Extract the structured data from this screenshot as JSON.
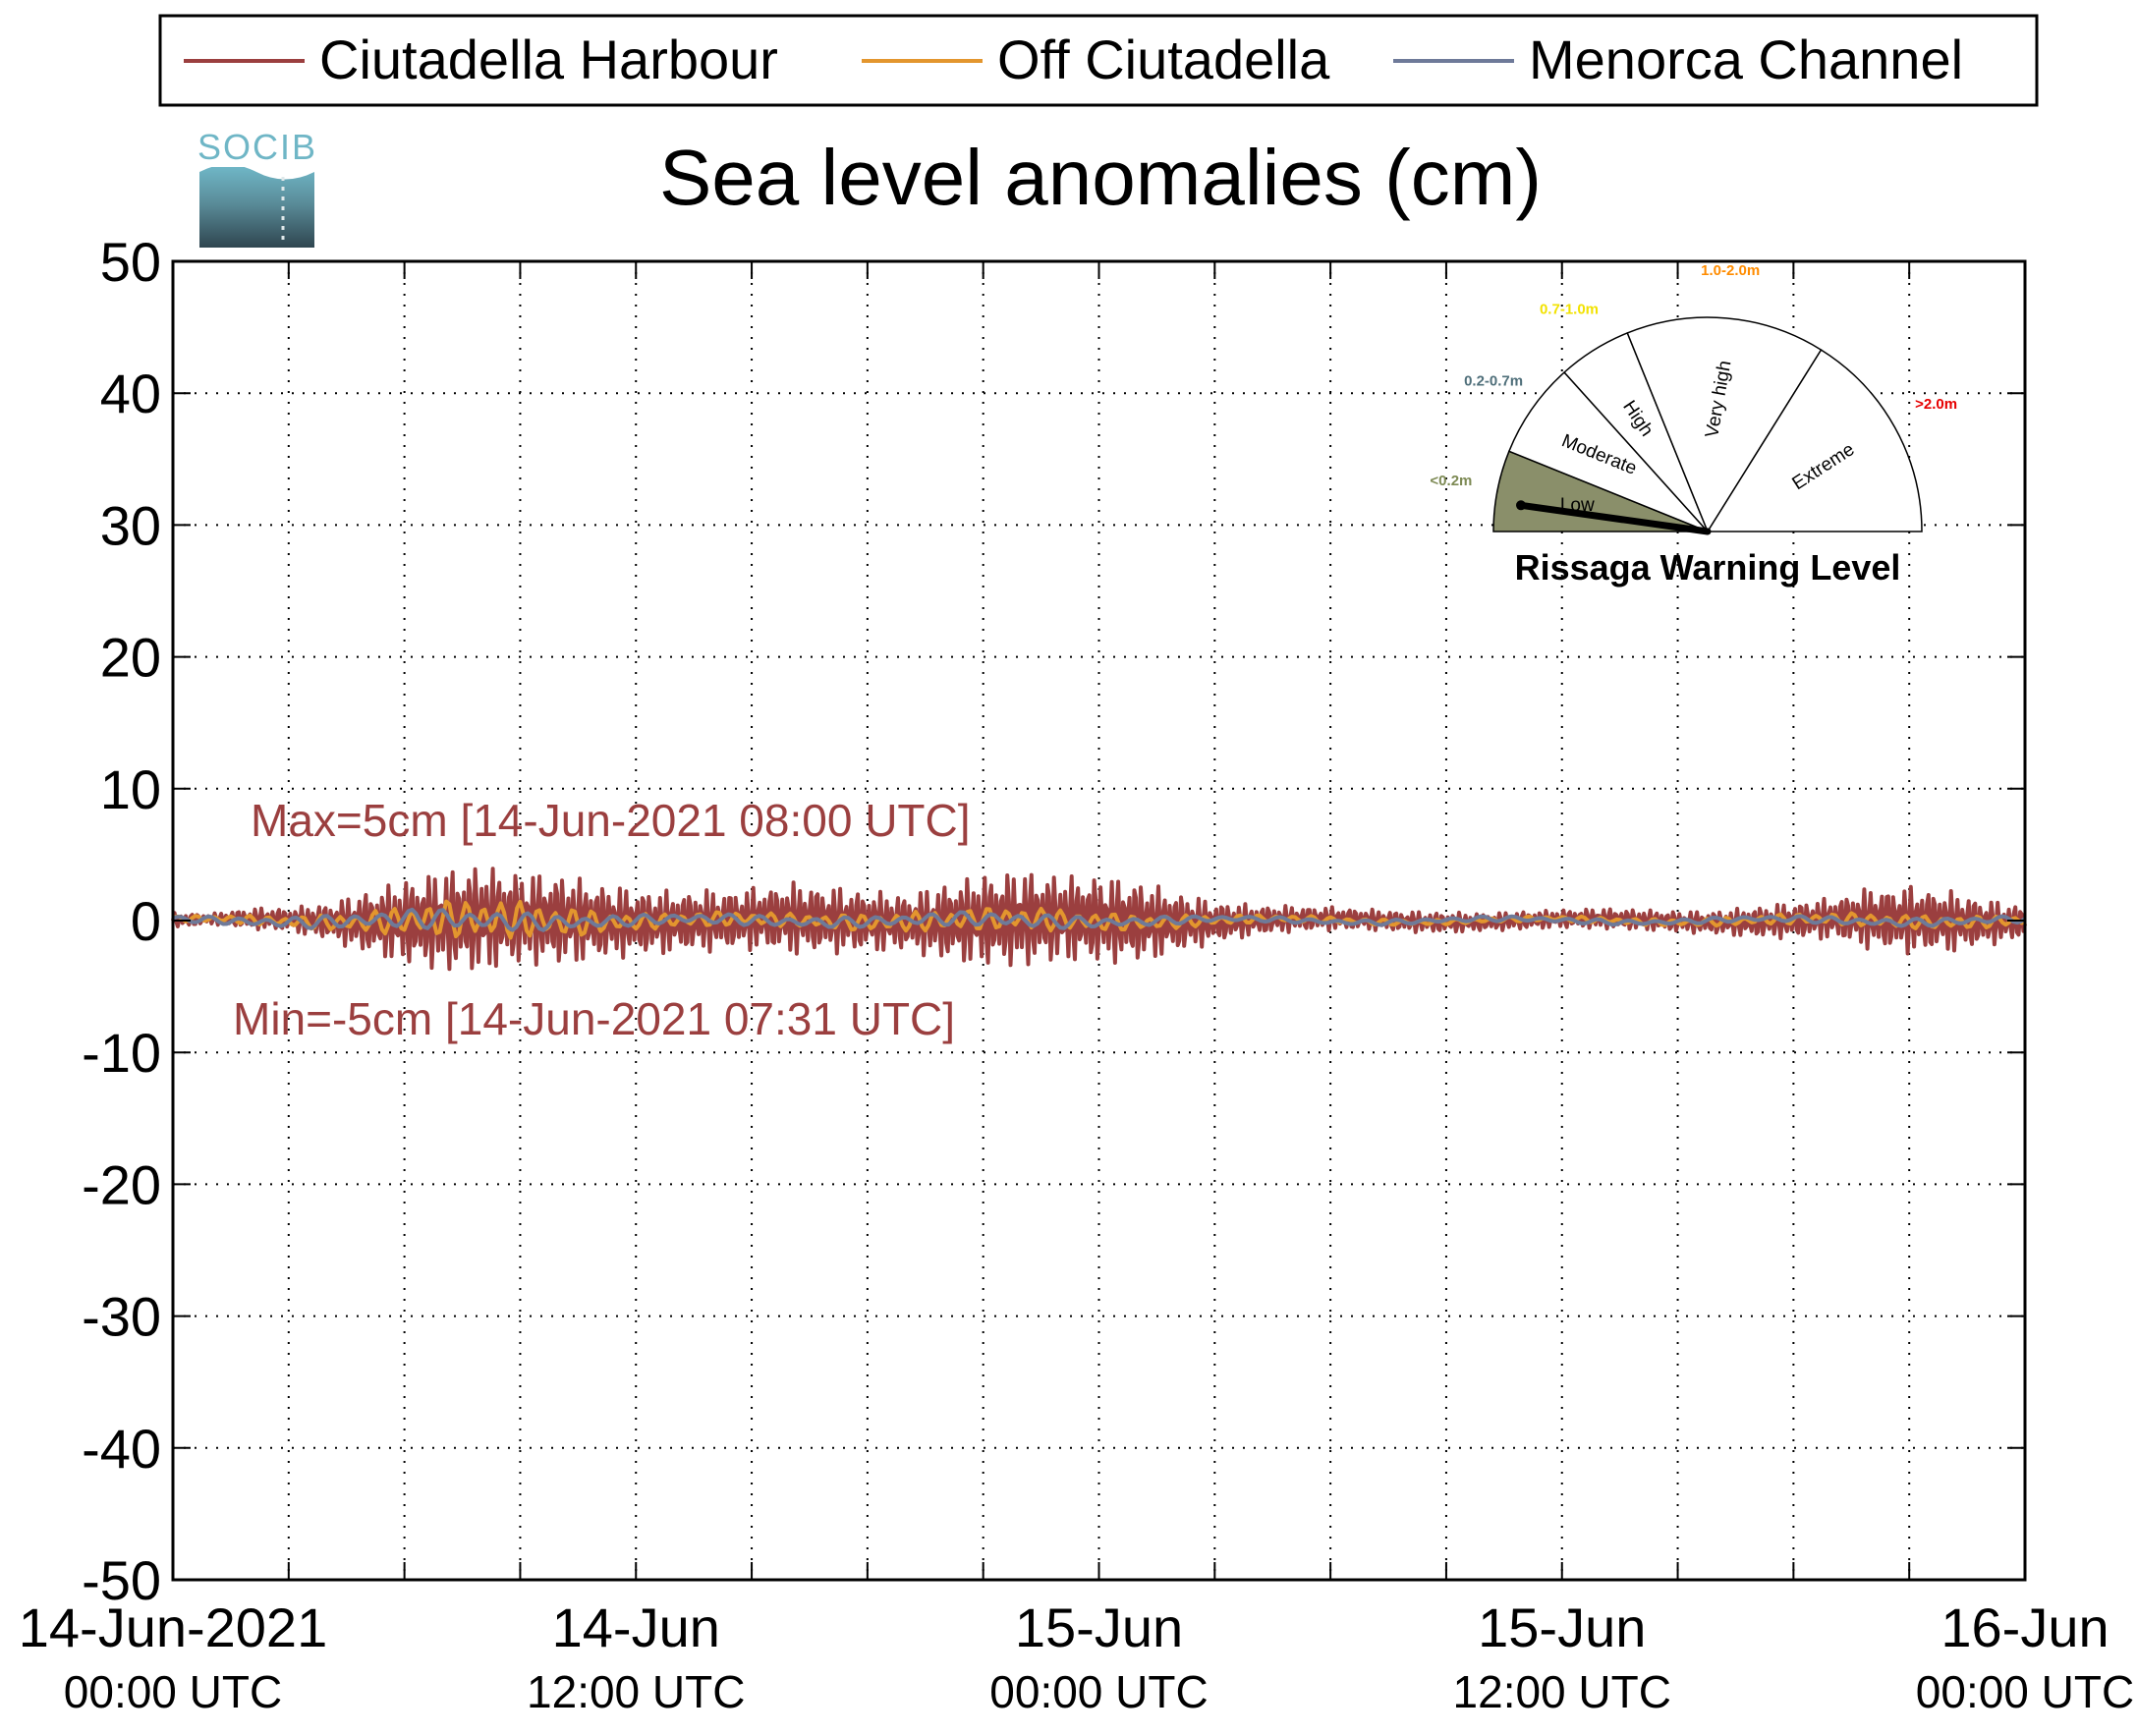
{
  "chart_data": {
    "type": "line",
    "title": "Sea level anomalies (cm)",
    "logo_text": "SOCIB",
    "ylim": [
      -50,
      50
    ],
    "yticks": [
      50,
      40,
      30,
      20,
      10,
      0,
      -10,
      -20,
      -30,
      -40,
      -50
    ],
    "xlim": [
      "2021-06-14T00:00",
      "2021-06-16T00:00"
    ],
    "x_grid_hours": [
      3,
      6,
      9,
      12,
      15,
      18,
      21,
      24,
      27,
      30,
      33,
      36,
      39,
      42,
      45
    ],
    "xticks": [
      {
        "hour": 0,
        "line1": "14-Jun-2021",
        "line2": "00:00 UTC"
      },
      {
        "hour": 12,
        "line1": "14-Jun",
        "line2": "12:00 UTC"
      },
      {
        "hour": 24,
        "line1": "15-Jun",
        "line2": "00:00 UTC"
      },
      {
        "hour": 36,
        "line1": "15-Jun",
        "line2": "12:00 UTC"
      },
      {
        "hour": 48,
        "line1": "16-Jun",
        "line2": "00:00 UTC"
      }
    ],
    "grid": true,
    "legend_position": "top",
    "series": [
      {
        "name": "Ciutadella Harbour",
        "color": "#9b3f3f",
        "envelope_hours": [
          0,
          1,
          2,
          3,
          4,
          5,
          6,
          7,
          8,
          9,
          10,
          11,
          12,
          13,
          14,
          15,
          16,
          17,
          18,
          19,
          20,
          21,
          22,
          23,
          24,
          25,
          26,
          27,
          28,
          29,
          30,
          31,
          32,
          33,
          34,
          35,
          36,
          37,
          38,
          39,
          40,
          41,
          42,
          43,
          44,
          45,
          46,
          47,
          48
        ],
        "envelope_cm": [
          0.6,
          0.4,
          0.8,
          0.9,
          1.4,
          2.4,
          3.3,
          4.0,
          4.2,
          3.6,
          3.6,
          3.0,
          2.6,
          2.4,
          2.4,
          2.4,
          2.8,
          2.6,
          2.4,
          2.2,
          3.0,
          3.6,
          3.8,
          3.4,
          3.4,
          3.2,
          2.4,
          1.6,
          1.2,
          1.0,
          0.9,
          0.8,
          0.8,
          0.8,
          0.7,
          0.7,
          0.7,
          0.8,
          0.8,
          0.8,
          0.9,
          1.2,
          1.4,
          1.6,
          2.4,
          2.6,
          2.4,
          1.8,
          1.2
        ]
      },
      {
        "name": "Off Ciutadella",
        "color": "#e3962e",
        "envelope_hours": [
          0,
          3,
          5,
          7,
          8,
          10,
          12,
          16,
          20,
          22,
          24,
          26,
          28,
          32,
          36,
          40,
          44,
          46,
          48
        ],
        "envelope_cm": [
          0.2,
          0.4,
          0.8,
          1.4,
          1.6,
          1.2,
          0.6,
          0.5,
          0.8,
          0.9,
          0.7,
          0.5,
          0.3,
          0.2,
          0.2,
          0.3,
          0.5,
          0.5,
          0.4
        ]
      },
      {
        "name": "Menorca Channel",
        "color": "#6e7a99",
        "envelope_hours": [
          0,
          4,
          7,
          9,
          12,
          18,
          22,
          24,
          28,
          34,
          40,
          44,
          48
        ],
        "envelope_cm": [
          0.2,
          0.5,
          0.8,
          0.7,
          0.4,
          0.4,
          0.6,
          0.4,
          0.2,
          0.2,
          0.2,
          0.3,
          0.3
        ]
      }
    ],
    "annotations": [
      {
        "text": "Max=5cm [14-Jun-2021 08:00 UTC]",
        "color": "#9b3f3f"
      },
      {
        "text": "Min=-5cm [14-Jun-2021 07:31 UTC]",
        "color": "#9b3f3f"
      }
    ]
  },
  "gauge": {
    "title": "Rissaga Warning Level",
    "current_level": "Low",
    "sectors": [
      {
        "label": "Low",
        "range": "<0.2m",
        "range_color": "#7d8a54",
        "fill": "#8a8f6a"
      },
      {
        "label": "Moderate",
        "range": "0.2-0.7m",
        "range_color": "#4f6f7a",
        "fill": "#ffffff"
      },
      {
        "label": "High",
        "range": "0.7-1.0m",
        "range_color": "#f2e200",
        "fill": "#ffffff"
      },
      {
        "label": "Very high",
        "range": "1.0-2.0m",
        "range_color": "#ff8c00",
        "fill": "#ffffff"
      },
      {
        "label": "Extreme",
        "range": ">2.0m",
        "range_color": "#e60000",
        "fill": "#ffffff"
      }
    ]
  }
}
